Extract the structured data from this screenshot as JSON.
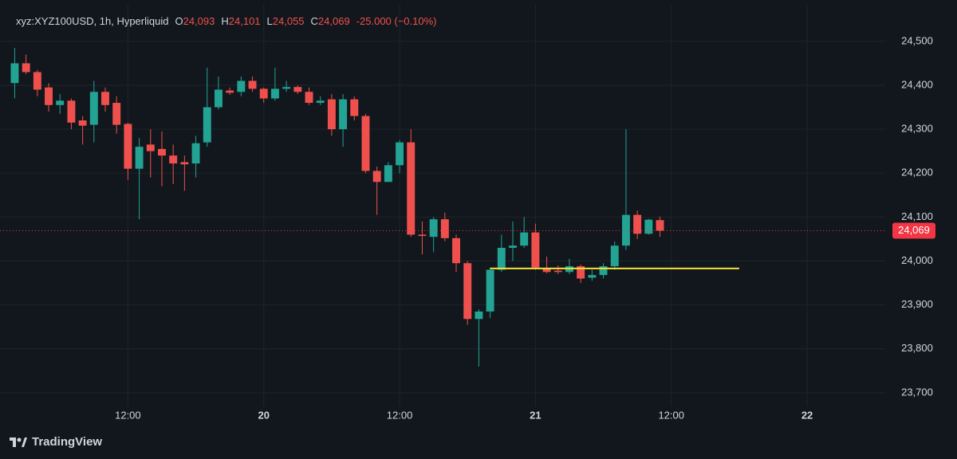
{
  "chart_data": {
    "type": "candlestick",
    "legend": {
      "symbol": "xyz:XYZ100USD, 1h, Hyperliquid",
      "items": [
        {
          "key": "O",
          "value": "24,093"
        },
        {
          "key": "H",
          "value": "24,101"
        },
        {
          "key": "L",
          "value": "24,055"
        },
        {
          "key": "C",
          "value": "24,069"
        }
      ],
      "change": "-25.000 (−0.10%)"
    },
    "x": [
      2,
      3,
      4,
      5,
      6,
      7,
      8,
      9,
      10,
      11,
      12,
      13,
      14,
      15,
      16,
      17,
      18,
      19,
      20,
      21,
      22,
      23,
      24,
      25,
      26,
      27,
      28,
      29,
      30,
      31,
      32,
      33,
      34,
      35,
      36,
      37,
      38,
      39,
      40,
      41,
      42,
      43,
      44,
      45,
      46,
      47,
      48,
      49,
      50,
      51,
      52,
      53,
      54,
      55,
      56,
      57,
      58,
      59
    ],
    "open": [
      24405,
      24450,
      24430,
      24395,
      24355,
      24365,
      24320,
      24310,
      24385,
      24360,
      24312,
      24210,
      24265,
      24255,
      24240,
      24225,
      24222,
      24270,
      24350,
      24388,
      24385,
      24410,
      24392,
      24370,
      24392,
      24396,
      24385,
      24360,
      24368,
      24300,
      24368,
      24330,
      24205,
      24180,
      24218,
      24270,
      24060,
      24055,
      24095,
      24052,
      23995,
      23868,
      23885,
      23980,
      24030,
      24035,
      24065,
      23982,
      23978,
      23975,
      23988,
      23962,
      23968,
      23988,
      24035,
      24105,
      24062,
      24093
    ],
    "high": [
      24485,
      24470,
      24435,
      24405,
      24380,
      24370,
      24330,
      24410,
      24395,
      24375,
      24315,
      24280,
      24300,
      24295,
      24265,
      24240,
      24285,
      24440,
      24420,
      24395,
      24420,
      24420,
      24395,
      24440,
      24410,
      24400,
      24395,
      24375,
      24380,
      24380,
      24375,
      24335,
      24215,
      24225,
      24275,
      24300,
      24090,
      24100,
      24110,
      24060,
      24000,
      23890,
      23985,
      24060,
      24090,
      24100,
      24085,
      24010,
      23990,
      24005,
      23992,
      23980,
      23995,
      24045,
      24300,
      24115,
      24096,
      24101
    ],
    "low": [
      24370,
      24425,
      24375,
      24340,
      24335,
      24300,
      24265,
      24270,
      24340,
      24290,
      24185,
      24095,
      24190,
      24170,
      24175,
      24160,
      24190,
      24260,
      24345,
      24378,
      24375,
      24385,
      24360,
      24365,
      24385,
      24380,
      24355,
      24355,
      24285,
      24260,
      24320,
      24200,
      24105,
      24180,
      24200,
      24055,
      24015,
      24020,
      24045,
      23975,
      23855,
      23760,
      23870,
      23975,
      24000,
      24030,
      23980,
      23972,
      23970,
      23970,
      23950,
      23955,
      23960,
      23980,
      24025,
      24050,
      24060,
      24055
    ],
    "close": [
      24450,
      24430,
      24390,
      24355,
      24365,
      24315,
      24308,
      24385,
      24355,
      24310,
      24210,
      24260,
      24250,
      24240,
      24222,
      24220,
      24268,
      24350,
      24390,
      24383,
      24410,
      24392,
      24370,
      24392,
      24396,
      24385,
      24360,
      24365,
      24300,
      24368,
      24330,
      24205,
      24180,
      24218,
      24270,
      24060,
      24057,
      24095,
      24052,
      23995,
      23868,
      23885,
      23980,
      24030,
      24035,
      24065,
      23985,
      23975,
      23975,
      23988,
      23960,
      23968,
      23988,
      24035,
      24105,
      24062,
      24094,
      24069
    ],
    "up_color": "#22a393",
    "down_color": "#f0504d",
    "hline": {
      "value": 23983,
      "x": [
        44,
        66
      ],
      "color": "#f5e23a"
    },
    "last_price": {
      "value": 24069,
      "label": "24,069",
      "color": "#f23645"
    },
    "xlim": [
      0.7,
      78.9
    ],
    "xticks": [
      {
        "value": 12,
        "label": "12:00"
      },
      {
        "value": 24,
        "label": "20"
      },
      {
        "value": 36,
        "label": "12:00"
      },
      {
        "value": 48,
        "label": "21"
      },
      {
        "value": 60,
        "label": "12:00"
      },
      {
        "value": 72,
        "label": "22"
      }
    ],
    "ylim": [
      23669,
      24585
    ],
    "yticks": [
      {
        "value": 23700,
        "label": "23,700"
      },
      {
        "value": 23800,
        "label": "23,800"
      },
      {
        "value": 23900,
        "label": "23,900"
      },
      {
        "value": 24000,
        "label": "24,000"
      },
      {
        "value": 24100,
        "label": "24,100"
      },
      {
        "value": 24200,
        "label": "24,200"
      },
      {
        "value": 24300,
        "label": "24,300"
      },
      {
        "value": 24400,
        "label": "24,400"
      },
      {
        "value": 24500,
        "label": "24,500"
      }
    ],
    "grid": true,
    "brand": "TradingView"
  }
}
